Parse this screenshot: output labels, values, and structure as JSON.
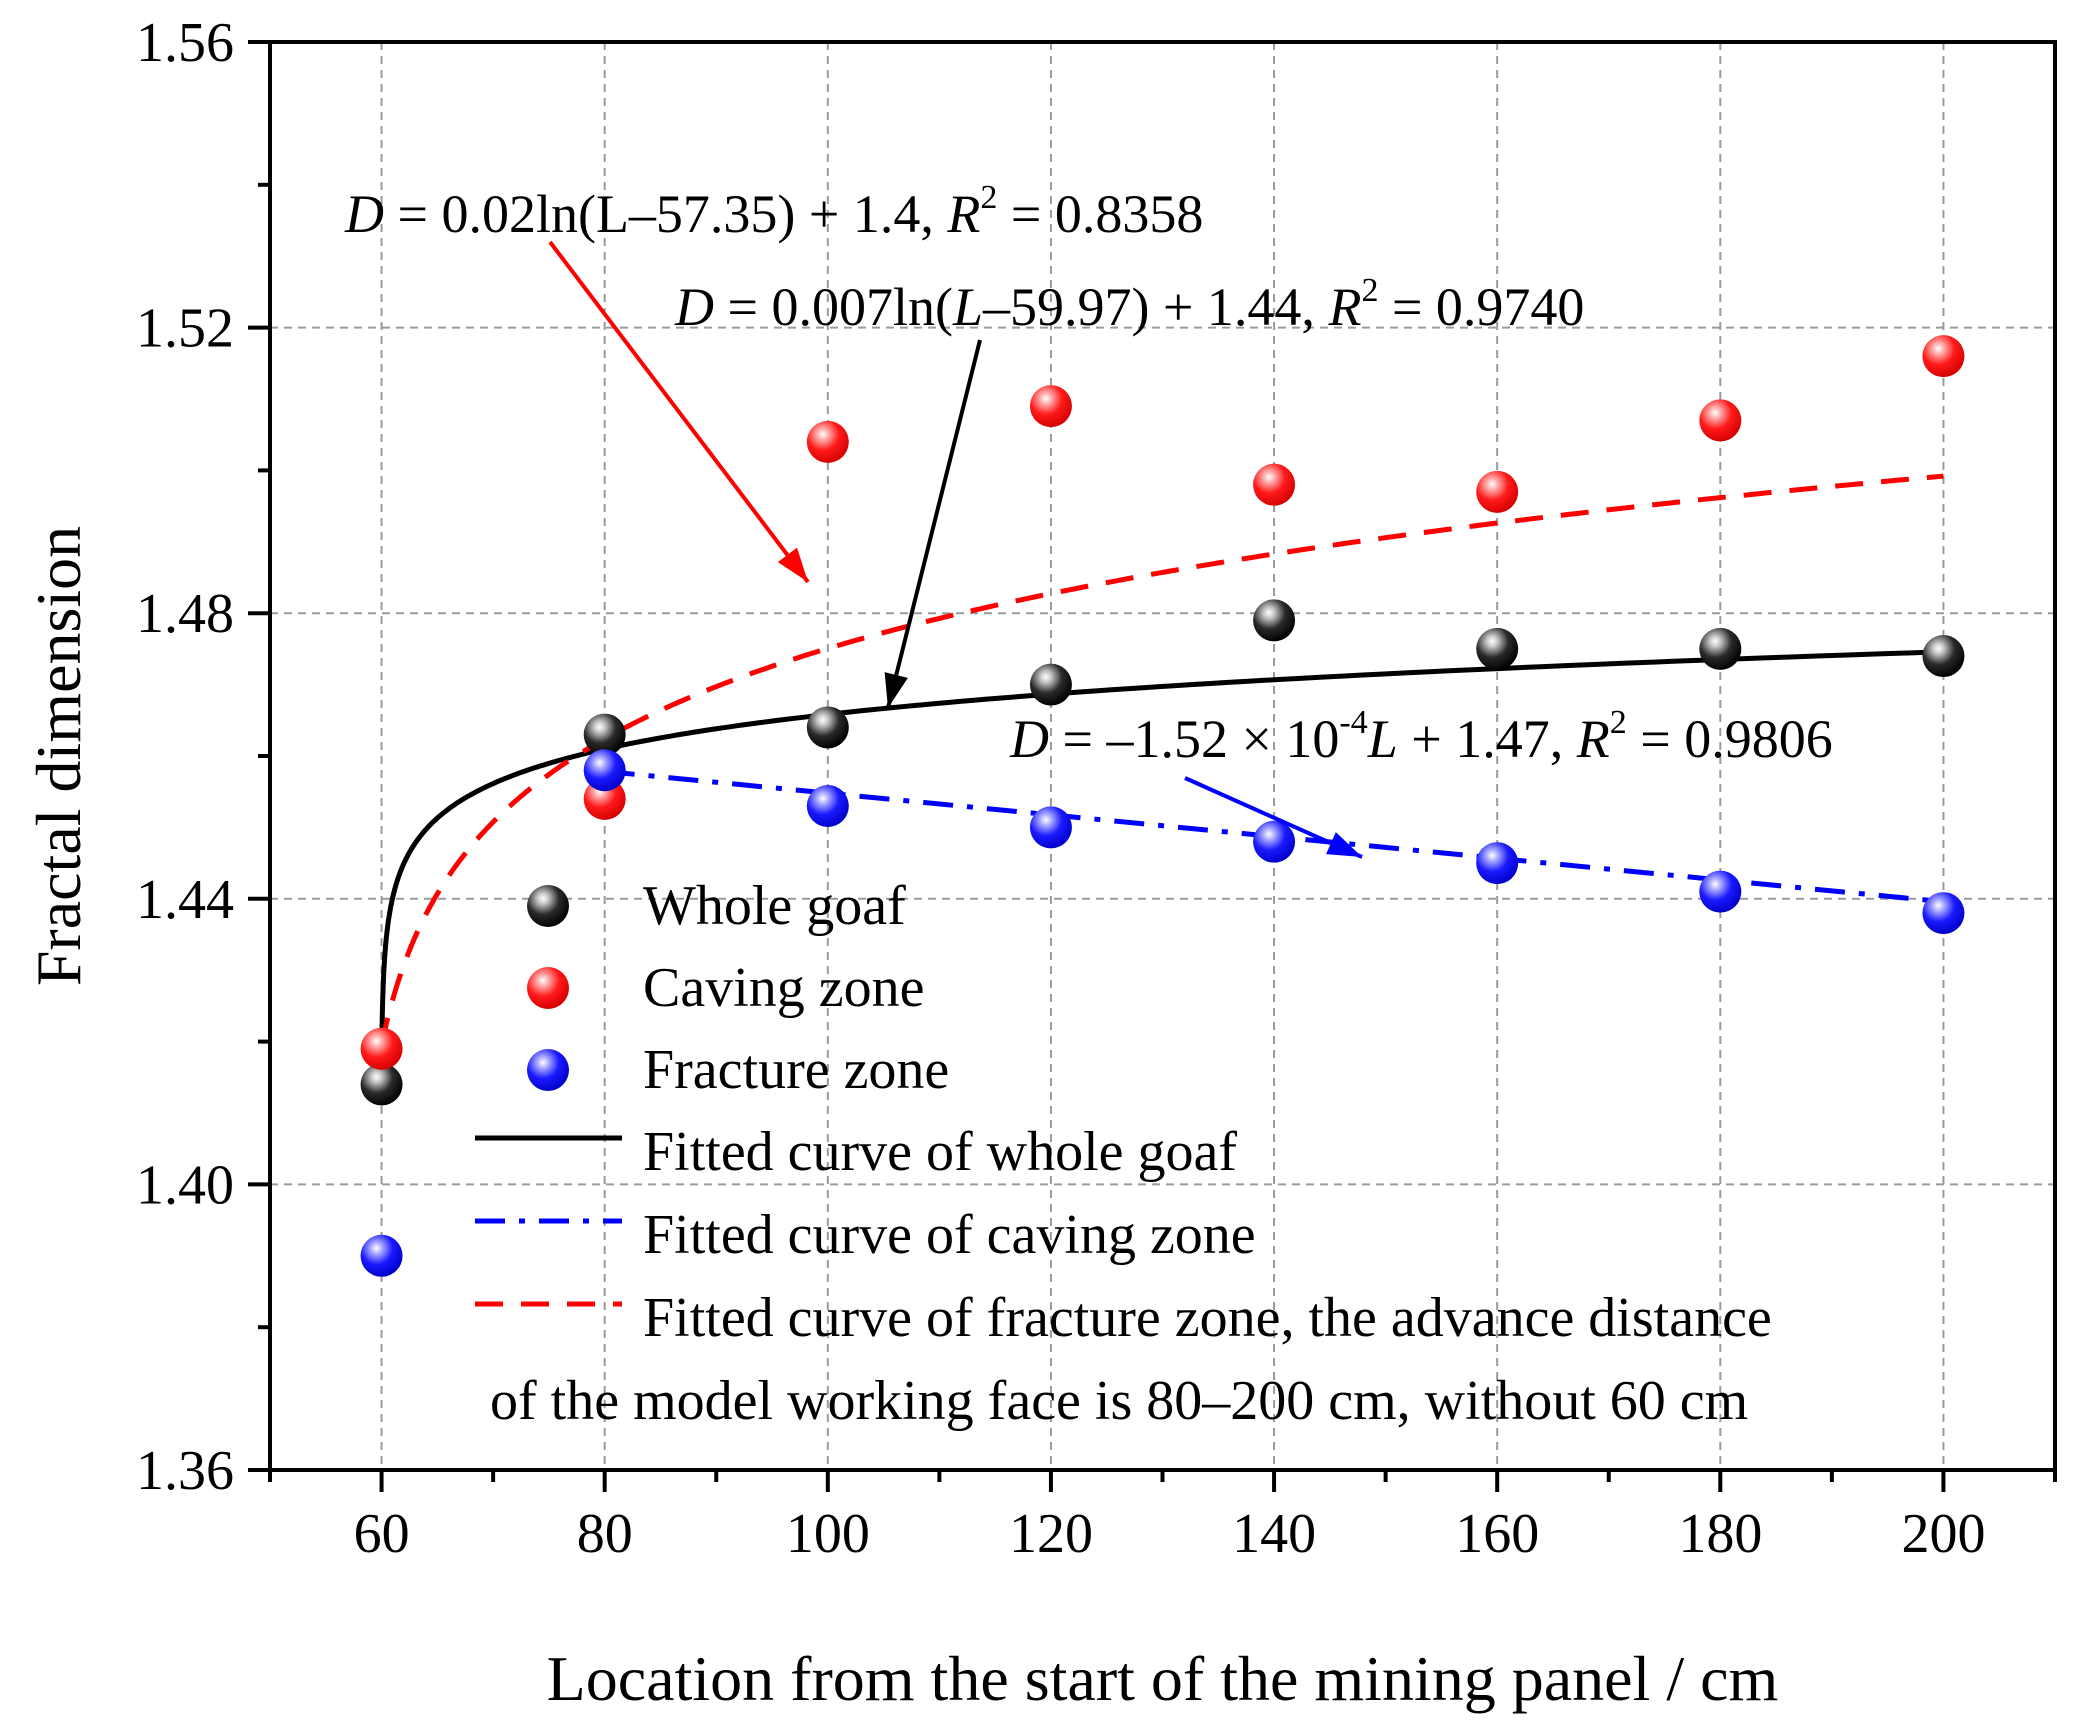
{
  "chart_data": {
    "type": "scatter",
    "title": "",
    "xlabel": "Location from the start of the mining panel / cm",
    "ylabel": "Fractal dimension",
    "xlim": [
      50,
      210
    ],
    "ylim": [
      1.36,
      1.56
    ],
    "xticks": [
      60,
      80,
      100,
      120,
      140,
      160,
      180,
      200
    ],
    "xtick_labels": [
      "60",
      "80",
      "100",
      "120",
      "140",
      "160",
      "180",
      "200"
    ],
    "yticks": [
      1.36,
      1.4,
      1.44,
      1.48,
      1.52,
      1.56
    ],
    "ytick_labels": [
      "1.36",
      "1.40",
      "1.44",
      "1.48",
      "1.52",
      "1.56"
    ],
    "grid": true,
    "series": [
      {
        "name": "Whole goaf",
        "color": "#000000",
        "x": [
          60,
          80,
          100,
          120,
          140,
          160,
          180,
          200
        ],
        "y": [
          1.414,
          1.463,
          1.464,
          1.47,
          1.479,
          1.475,
          1.475,
          1.474
        ]
      },
      {
        "name": "Caving zone",
        "color": "#ff0000",
        "x": [
          60,
          80,
          100,
          120,
          140,
          160,
          180,
          200
        ],
        "y": [
          1.419,
          1.454,
          1.504,
          1.509,
          1.498,
          1.497,
          1.507,
          1.516
        ]
      },
      {
        "name": "Fracture zone",
        "color": "#0000ff",
        "x": [
          60,
          80,
          100,
          120,
          140,
          160,
          180,
          200
        ],
        "y": [
          1.39,
          1.458,
          1.453,
          1.45,
          1.448,
          1.445,
          1.441,
          1.438
        ]
      }
    ],
    "fits": [
      {
        "name": "Fitted curve of whole goaf",
        "style": "solid",
        "color": "#000000",
        "model": "log",
        "a": 0.007,
        "b": 59.97,
        "c": 1.44,
        "domain": [
          60.0,
          200
        ],
        "equation": {
          "prefix": "D",
          "main": " = 0.007ln(",
          "var": "L",
          "mid": "–59.97) + 1.44, ",
          "r": "R",
          "sup": "2",
          "tail": " = 0.9740"
        }
      },
      {
        "name": "Fitted curve of caving zone",
        "style": "dashdot",
        "color": "#0000ff",
        "model": "linear",
        "m": -0.000152,
        "c": 1.47,
        "domain": [
          80,
          200
        ],
        "equation": {
          "prefix": "D",
          "main": " = –1.52 × 10",
          "sup": "-4",
          "var": "L",
          "mid": " + 1.47, ",
          "r": "R",
          "sup2": "2",
          "tail": " = 0.9806"
        }
      },
      {
        "name": "Fitted curve of fracture zone, the advance distance",
        "name_line2": "of the model working face is 80–200 cm, without 60 cm",
        "style": "dashed",
        "color": "#ff0000",
        "model": "log",
        "a": 0.02,
        "b": 57.35,
        "c": 1.4,
        "domain": [
          60,
          200
        ],
        "equation": {
          "prefix": "D",
          "main": " = 0.02ln(L–57.35) + 1.4, ",
          "r": "R",
          "sup": "2",
          "tail": " = 0.8358"
        }
      }
    ],
    "legend": {
      "position": "bottom-left",
      "entries": [
        "Whole goaf",
        "Caving zone",
        "Fracture zone",
        "Fitted curve of whole goaf",
        "Fitted curve of caving zone",
        "Fitted curve of fracture zone, the advance distance",
        "of the model working face is 80–200 cm, without 60 cm"
      ]
    }
  }
}
